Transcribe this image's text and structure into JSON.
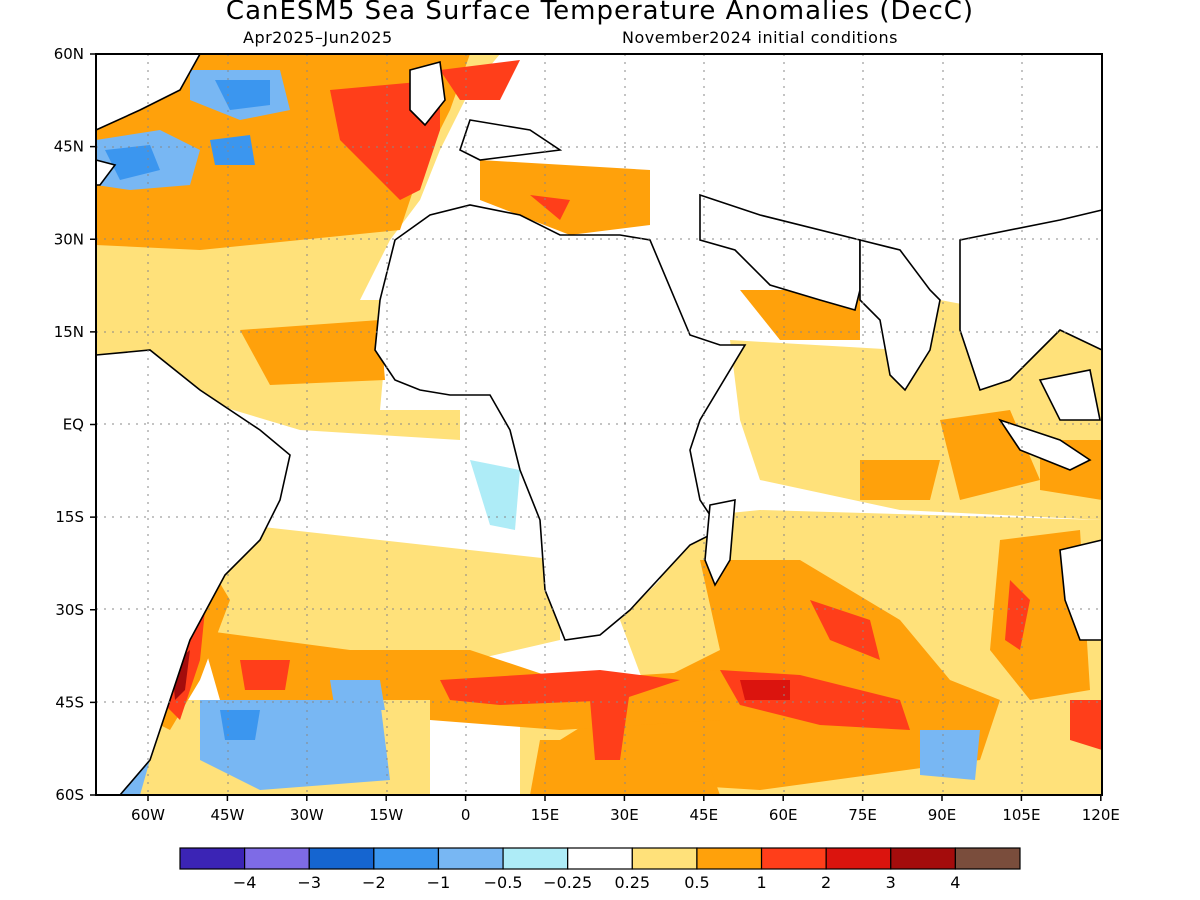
{
  "title": "CanESM5 Sea Surface Temperature Anomalies (DecC)",
  "subtitle_left": "Apr2025–Jun2025",
  "subtitle_right": "November2024 initial conditions",
  "lat_ticks": [
    "60N",
    "45N",
    "30N",
    "15N",
    "EQ",
    "15S",
    "30S",
    "45S",
    "60S"
  ],
  "lon_ticks": [
    "60W",
    "45W",
    "30W",
    "15W",
    "0",
    "15E",
    "30E",
    "45E",
    "60E",
    "75E",
    "90E",
    "105E",
    "120E"
  ],
  "colorbar": {
    "colors": [
      "#3b24b5",
      "#7e6be6",
      "#1565d0",
      "#3b96ef",
      "#78b7f3",
      "#aeecf7",
      "#ffffff",
      "#ffe17a",
      "#ffa10b",
      "#ff3e1a",
      "#db140e",
      "#a40c0c",
      "#7a4d3c"
    ],
    "labels": [
      "−4",
      "−3",
      "−2",
      "−1",
      "−0.5",
      "−0.25",
      "0.25",
      "0.5",
      "1",
      "2",
      "3",
      "4"
    ]
  }
}
